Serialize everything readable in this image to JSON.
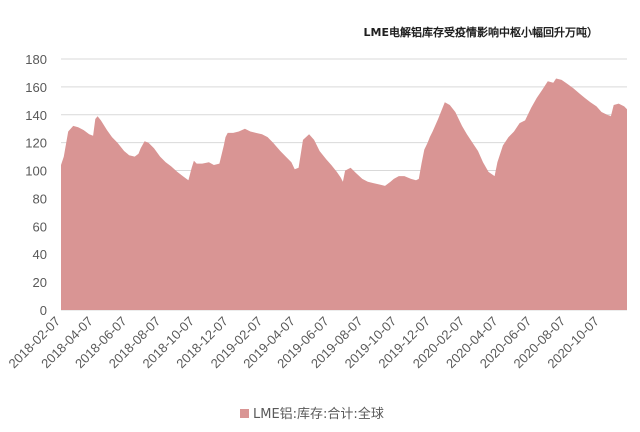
{
  "chart_data": {
    "type": "area",
    "title": "LME电解铝库存受疫情影响中枢小幅回升万吨）",
    "ylim": [
      0,
      180
    ],
    "yticks": [
      "0",
      "20",
      "40",
      "60",
      "80",
      "100",
      "120",
      "140",
      "160",
      "180"
    ],
    "xticks": [
      "2018-02-07",
      "2018-04-07",
      "2018-06-07",
      "2018-08-07",
      "2018-10-07",
      "2018-12-07",
      "2019-02-07",
      "2019-04-07",
      "2019-06-07",
      "2019-08-07",
      "2019-10-07",
      "2019-12-07",
      "2020-02-07",
      "2020-04-07",
      "2020-06-07",
      "2020-08-07",
      "2020-10-07"
    ],
    "xrange": [
      "2018-02-07",
      "2020-11-25"
    ],
    "grid": true,
    "legend_position": "bottom",
    "fill_color": "#d99594",
    "series": [
      {
        "name": "LME铝:库存:合计:全球",
        "x": [
          "2018-02-07",
          "2018-02-12",
          "2018-02-20",
          "2018-03-01",
          "2018-03-10",
          "2018-03-20",
          "2018-03-30",
          "2018-04-06",
          "2018-04-10",
          "2018-04-14",
          "2018-04-20",
          "2018-05-01",
          "2018-05-10",
          "2018-05-20",
          "2018-06-01",
          "2018-06-10",
          "2018-06-20",
          "2018-06-27",
          "2018-07-01",
          "2018-07-08",
          "2018-07-15",
          "2018-07-25",
          "2018-08-05",
          "2018-08-15",
          "2018-08-25",
          "2018-09-05",
          "2018-09-15",
          "2018-09-25",
          "2018-10-01",
          "2018-10-05",
          "2018-10-10",
          "2018-10-20",
          "2018-11-01",
          "2018-11-10",
          "2018-11-20",
          "2018-11-28",
          "2018-12-01",
          "2018-12-05",
          "2018-12-15",
          "2018-12-25",
          "2019-01-05",
          "2019-01-15",
          "2019-01-25",
          "2019-02-05",
          "2019-02-15",
          "2019-02-25",
          "2019-03-10",
          "2019-03-20",
          "2019-03-30",
          "2019-04-05",
          "2019-04-12",
          "2019-04-20",
          "2019-05-01",
          "2019-05-10",
          "2019-05-20",
          "2019-06-01",
          "2019-06-10",
          "2019-06-20",
          "2019-06-27",
          "2019-07-01",
          "2019-07-05",
          "2019-07-15",
          "2019-07-25",
          "2019-08-05",
          "2019-08-15",
          "2019-08-25",
          "2019-09-05",
          "2019-09-15",
          "2019-09-25",
          "2019-10-01",
          "2019-10-10",
          "2019-10-20",
          "2019-11-01",
          "2019-11-10",
          "2019-11-15",
          "2019-11-20",
          "2019-11-25",
          "2019-12-01",
          "2019-12-05",
          "2019-12-10",
          "2019-12-20",
          "2020-01-01",
          "2020-01-10",
          "2020-01-20",
          "2020-02-01",
          "2020-02-10",
          "2020-02-20",
          "2020-03-01",
          "2020-03-10",
          "2020-03-20",
          "2020-03-31",
          "2020-04-05",
          "2020-04-15",
          "2020-04-25",
          "2020-05-05",
          "2020-05-15",
          "2020-05-25",
          "2020-06-05",
          "2020-06-15",
          "2020-06-25",
          "2020-07-05",
          "2020-07-15",
          "2020-07-20",
          "2020-07-30",
          "2020-08-10",
          "2020-08-20",
          "2020-09-01",
          "2020-09-10",
          "2020-09-20",
          "2020-10-01",
          "2020-10-10",
          "2020-10-20",
          "2020-10-27",
          "2020-11-01",
          "2020-11-10",
          "2020-11-20",
          "2020-11-25"
        ],
        "values": [
          104,
          110,
          128,
          132,
          131,
          129,
          126,
          125,
          137,
          139,
          136,
          129,
          124,
          120,
          114,
          111,
          110,
          112,
          116,
          121,
          120,
          116,
          110,
          106,
          103,
          99,
          96,
          93,
          102,
          107,
          105,
          105,
          106,
          104,
          105,
          118,
          124,
          127,
          127,
          128,
          130,
          128,
          127,
          126,
          124,
          120,
          114,
          110,
          106,
          101,
          102,
          122,
          126,
          122,
          114,
          108,
          104,
          99,
          95,
          92,
          100,
          102,
          98,
          94,
          92,
          91,
          90,
          89,
          92,
          94,
          96,
          96,
          94,
          93,
          94,
          105,
          115,
          120,
          124,
          128,
          137,
          149,
          147,
          142,
          132,
          126,
          120,
          114,
          106,
          99,
          96,
          106,
          118,
          124,
          128,
          134,
          136,
          145,
          152,
          158,
          164,
          163,
          166,
          165,
          162,
          159,
          155,
          152,
          149,
          146,
          142,
          140,
          139,
          147,
          148,
          146,
          144
        ]
      }
    ]
  }
}
